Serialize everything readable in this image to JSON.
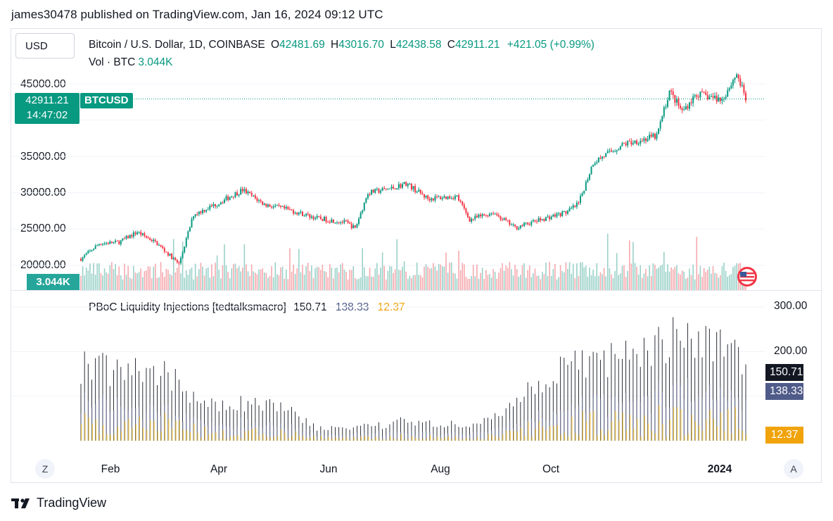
{
  "header": {
    "text": "james30478 published on TradingView.com, Jan 16, 2024 09:12 UTC"
  },
  "currency_button": {
    "label": "USD"
  },
  "main_legend": {
    "symbol": "Bitcoin / U.S. Dollar, 1D, COINBASE",
    "o_key": "O",
    "o_val": "42481.69",
    "h_key": "H",
    "h_val": "43016.70",
    "l_key": "L",
    "l_val": "42438.58",
    "c_key": "C",
    "c_val": "42911.21",
    "change": "+421.05 (+0.99%)"
  },
  "volume_legend": {
    "label": "Vol · BTC",
    "value": "3.044K"
  },
  "price_axis": {
    "ticks": [
      "45000.00",
      "35000.00",
      "30000.00",
      "25000.00",
      "20000.00"
    ]
  },
  "price_badge": {
    "price": "42911.21",
    "countdown": "14:47:02"
  },
  "symbol_badge": {
    "label": "BTCUSD"
  },
  "volume_badge": {
    "label": "3.044K"
  },
  "indicator": {
    "title": "PBoC Liquidity Injections [tedtalksmacro]",
    "v1": "150.71",
    "v2": "138.33",
    "v3": "12.37",
    "axis_ticks": [
      "300.00",
      "200.00"
    ],
    "badges": [
      "150.71",
      "138.33",
      "12.37"
    ]
  },
  "time_axis": {
    "labels": [
      "Feb",
      "Apr",
      "Jun",
      "Aug",
      "Oct",
      "2024"
    ]
  },
  "buttons": {
    "zoom": "Z",
    "auto": "A"
  },
  "footer": {
    "brand": "TradingView"
  },
  "colors": {
    "up": "#089981",
    "down": "#f23645",
    "black": "#131722",
    "navy": "#4f5b89",
    "gold": "#f0a30a"
  },
  "chart_data": {
    "type": "candlestick",
    "interval": "1D",
    "x_range": [
      "2023-01-15",
      "2024-01-16"
    ],
    "ylim": [
      18500,
      49000
    ],
    "close_series": [
      [
        "2023-01-15",
        20900
      ],
      [
        "2023-01-25",
        23000
      ],
      [
        "2023-02-05",
        23200
      ],
      [
        "2023-02-15",
        24600
      ],
      [
        "2023-02-25",
        23200
      ],
      [
        "2023-03-10",
        20200
      ],
      [
        "2023-03-18",
        27000
      ],
      [
        "2023-03-31",
        28500
      ],
      [
        "2023-04-14",
        30400
      ],
      [
        "2023-04-26",
        28400
      ],
      [
        "2023-05-10",
        27600
      ],
      [
        "2023-05-25",
        26500
      ],
      [
        "2023-06-10",
        25900
      ],
      [
        "2023-06-15",
        25100
      ],
      [
        "2023-06-22",
        30000
      ],
      [
        "2023-07-05",
        30600
      ],
      [
        "2023-07-13",
        31300
      ],
      [
        "2023-07-25",
        29200
      ],
      [
        "2023-08-10",
        29500
      ],
      [
        "2023-08-17",
        26300
      ],
      [
        "2023-08-30",
        27300
      ],
      [
        "2023-09-11",
        25200
      ],
      [
        "2023-09-25",
        26300
      ],
      [
        "2023-10-10",
        27400
      ],
      [
        "2023-10-16",
        28500
      ],
      [
        "2023-10-24",
        34200
      ],
      [
        "2023-11-10",
        36700
      ],
      [
        "2023-11-28",
        37800
      ],
      [
        "2023-12-05",
        44000
      ],
      [
        "2023-12-12",
        41200
      ],
      [
        "2023-12-20",
        43600
      ],
      [
        "2024-01-03",
        42800
      ],
      [
        "2024-01-11",
        46400
      ],
      [
        "2024-01-16",
        42911.21
      ]
    ],
    "indicator_series": [
      {
        "name": "PBoC Liquidity Injections",
        "last": 150.71,
        "color": "#131722"
      },
      {
        "name": "",
        "last": 138.33,
        "color": "#4f5b89"
      },
      {
        "name": "",
        "last": 12.37,
        "color": "#f0a30a"
      }
    ],
    "indicator_ylim": [
      0,
      300
    ]
  }
}
